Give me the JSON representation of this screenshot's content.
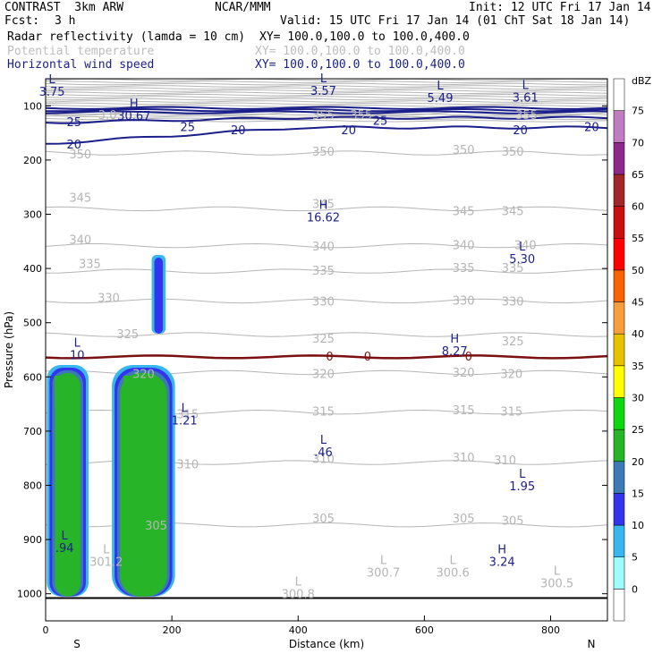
{
  "header": {
    "model": "CONTRAST  3km ARW",
    "source": "NCAR/MMM",
    "init": "Init: 12 UTC Fri 17 Jan 14",
    "fcst_label": "Fcst:",
    "fcst_value": "3 h",
    "valid": "Valid: 15 UTC Fri 17 Jan 14 (01 ChT Sat 18 Jan 14)",
    "field1": "Radar reflectivity (lamda = 10 cm)",
    "field1_xy": "XY= 100.0,100.0 to 100.0,400.0",
    "field2": "Potential temperature",
    "field2_xy": "XY= 100.0,100.0 to 100.0,400.0",
    "field3": "Horizontal wind speed",
    "field3_xy": "XY= 100.0,100.0 to 100.0,400.0"
  },
  "colors": {
    "theta": "#b5b5b5",
    "wind": "#1b1f8a",
    "melting_level": "#7a1010",
    "ground": "#000000"
  },
  "chart_data": {
    "type": "cross-section",
    "xlabel": "Distance (km)",
    "ylabel": "Pressure (hPa)",
    "x_ticks": [
      0,
      200,
      400,
      600,
      800
    ],
    "y_ticks": [
      100,
      200,
      300,
      400,
      500,
      600,
      700,
      800,
      900,
      1000
    ],
    "xlim": [
      0,
      890
    ],
    "ylim": [
      1050,
      50
    ],
    "y_axis": "pressure, decreasing upward",
    "x_end_labels": [
      "S",
      "N"
    ],
    "colorbar": {
      "units": "dBZ",
      "levels": [
        0,
        5,
        10,
        15,
        20,
        25,
        30,
        35,
        40,
        45,
        50,
        55,
        60,
        65,
        70,
        75
      ],
      "colors": [
        "#ffffff",
        "#9ffcfc",
        "#38b7ee",
        "#3434ee",
        "#3b7ab5",
        "#28b428",
        "#0fd70f",
        "#ffff00",
        "#e8c100",
        "#f89e3c",
        "#f86000",
        "#ff0000",
        "#c81010",
        "#a02828",
        "#8a2a8a",
        "#c07cc0",
        "#ffffff"
      ]
    },
    "reflectivity_cells": [
      {
        "x_range": [
          2,
          68
        ],
        "p_top": 578,
        "p_bottom": 1005,
        "max_dbz": 25
      },
      {
        "x_range": [
          105,
          205
        ],
        "p_top": 578,
        "p_bottom": 1005,
        "max_dbz": 25
      },
      {
        "x_range": [
          168,
          190
        ],
        "p_top": 375,
        "p_bottom": 520,
        "max_dbz": 10
      }
    ],
    "theta_contours": [
      {
        "level": 305,
        "p": 873
      },
      {
        "level": 310,
        "p": 758
      },
      {
        "level": 315,
        "p": 665
      },
      {
        "level": 320,
        "p": 592
      },
      {
        "level": 325,
        "p": 522
      },
      {
        "level": 330,
        "p": 460
      },
      {
        "level": 335,
        "p": 405
      },
      {
        "level": 340,
        "p": 358
      },
      {
        "level": 345,
        "p": 290
      },
      {
        "level": 350,
        "p": 187
      },
      {
        "level": 355,
        "p": 114
      }
    ],
    "theta_labels": [
      {
        "text": "305",
        "x": 175,
        "p": 875
      },
      {
        "text": "305",
        "x": 440,
        "p": 862
      },
      {
        "text": "305",
        "x": 662,
        "p": 862
      },
      {
        "text": "305",
        "x": 740,
        "p": 866
      },
      {
        "text": "310",
        "x": 225,
        "p": 762
      },
      {
        "text": "310",
        "x": 440,
        "p": 752
      },
      {
        "text": "310",
        "x": 662,
        "p": 750
      },
      {
        "text": "310",
        "x": 728,
        "p": 755
      },
      {
        "text": "315",
        "x": 225,
        "p": 670
      },
      {
        "text": "315",
        "x": 440,
        "p": 665
      },
      {
        "text": "315",
        "x": 662,
        "p": 662
      },
      {
        "text": "315",
        "x": 738,
        "p": 665
      },
      {
        "text": "320",
        "x": 155,
        "p": 595
      },
      {
        "text": "320",
        "x": 440,
        "p": 595
      },
      {
        "text": "320",
        "x": 662,
        "p": 593
      },
      {
        "text": "320",
        "x": 738,
        "p": 595
      },
      {
        "text": "325",
        "x": 130,
        "p": 522
      },
      {
        "text": "325",
        "x": 440,
        "p": 530
      },
      {
        "text": "325",
        "x": 740,
        "p": 535
      },
      {
        "text": "330",
        "x": 100,
        "p": 455
      },
      {
        "text": "330",
        "x": 440,
        "p": 462
      },
      {
        "text": "330",
        "x": 662,
        "p": 460
      },
      {
        "text": "330",
        "x": 740,
        "p": 462
      },
      {
        "text": "335",
        "x": 70,
        "p": 392
      },
      {
        "text": "335",
        "x": 440,
        "p": 405
      },
      {
        "text": "335",
        "x": 662,
        "p": 400
      },
      {
        "text": "335",
        "x": 740,
        "p": 400
      },
      {
        "text": "340",
        "x": 55,
        "p": 348
      },
      {
        "text": "340",
        "x": 440,
        "p": 360
      },
      {
        "text": "340",
        "x": 662,
        "p": 358
      },
      {
        "text": "340",
        "x": 760,
        "p": 358
      },
      {
        "text": "345",
        "x": 55,
        "p": 270
      },
      {
        "text": "345",
        "x": 440,
        "p": 282
      },
      {
        "text": "345",
        "x": 662,
        "p": 295
      },
      {
        "text": "345",
        "x": 740,
        "p": 295
      },
      {
        "text": "350",
        "x": 55,
        "p": 190
      },
      {
        "text": "350",
        "x": 440,
        "p": 185
      },
      {
        "text": "350",
        "x": 662,
        "p": 182
      },
      {
        "text": "350",
        "x": 740,
        "p": 185
      },
      {
        "text": "355",
        "x": 440,
        "p": 118
      },
      {
        "text": "355",
        "x": 500,
        "p": 118
      },
      {
        "text": "355",
        "x": 762,
        "p": 118
      },
      {
        "text": "3.0",
        "x": 98,
        "p": 118
      }
    ],
    "wind_contours": [
      {
        "level": 20,
        "p_left": 170,
        "p_right": 140
      },
      {
        "level": 25,
        "p_left": 131,
        "p_right": 122
      }
    ],
    "wind_labels": [
      {
        "text": "20",
        "x": 45,
        "p": 172
      },
      {
        "text": "20",
        "x": 305,
        "p": 146
      },
      {
        "text": "20",
        "x": 480,
        "p": 146
      },
      {
        "text": "20",
        "x": 752,
        "p": 146
      },
      {
        "text": "20",
        "x": 865,
        "p": 140
      },
      {
        "text": "25",
        "x": 45,
        "p": 131
      },
      {
        "text": "25",
        "x": 225,
        "p": 140
      },
      {
        "text": "25",
        "x": 530,
        "p": 128
      }
    ],
    "highs_lows": [
      {
        "type": "L",
        "x": 10,
        "p": 58,
        "value": "3.75",
        "field": "wind"
      },
      {
        "type": "H",
        "x": 140,
        "p": 103,
        "value": "30.67",
        "field": "wind"
      },
      {
        "type": "L",
        "x": 440,
        "p": 57,
        "value": "3.57",
        "field": "wind"
      },
      {
        "type": "L",
        "x": 625,
        "p": 70,
        "value": "5.49",
        "field": "wind"
      },
      {
        "type": "L",
        "x": 760,
        "p": 69,
        "value": "3.61",
        "field": "wind"
      },
      {
        "type": "H",
        "x": 440,
        "p": 290,
        "value": "16.62",
        "field": "wind"
      },
      {
        "type": "L",
        "x": 755,
        "p": 367,
        "value": "5.30",
        "field": "wind"
      },
      {
        "type": "H",
        "x": 648,
        "p": 537,
        "value": "8.27",
        "field": "wind"
      },
      {
        "type": "L",
        "x": 50,
        "p": 544,
        "value": "10",
        "field": "wind"
      },
      {
        "type": "L",
        "x": 220,
        "p": 665,
        "value": "1.21",
        "field": "wind"
      },
      {
        "type": "L",
        "x": 440,
        "p": 723,
        "value": ".46",
        "field": "wind"
      },
      {
        "type": "L",
        "x": 755,
        "p": 786,
        "value": "1.95",
        "field": "wind"
      },
      {
        "type": "H",
        "x": 723,
        "p": 925,
        "value": "3.24",
        "field": "wind"
      },
      {
        "type": "L",
        "x": 30,
        "p": 900,
        "value": ".94",
        "field": "wind"
      },
      {
        "type": "L",
        "x": 96,
        "p": 925,
        "value": "301.2",
        "field": "theta"
      },
      {
        "type": "L",
        "x": 400,
        "p": 985,
        "value": "300.8",
        "field": "theta"
      },
      {
        "type": "L",
        "x": 535,
        "p": 945,
        "value": "300.7",
        "field": "theta"
      },
      {
        "type": "L",
        "x": 645,
        "p": 945,
        "value": "300.6",
        "field": "theta"
      },
      {
        "type": "L",
        "x": 810,
        "p": 965,
        "value": "300.5",
        "field": "theta"
      }
    ],
    "melting_level": {
      "p": 563,
      "label": "0",
      "label_x": [
        450,
        510,
        670
      ]
    },
    "ground_p": 1008
  }
}
